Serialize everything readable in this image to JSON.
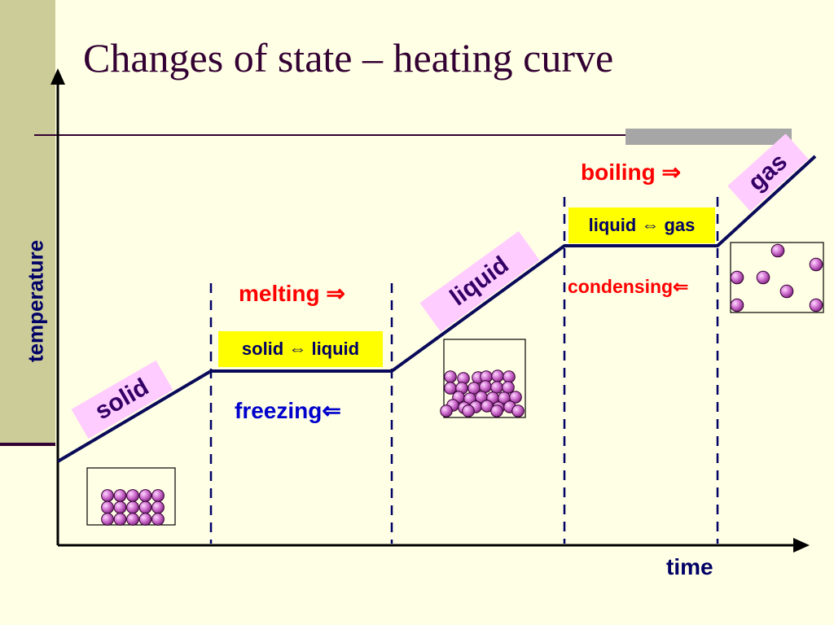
{
  "title": "Changes of state – heating curve",
  "axes": {
    "x_label": "time",
    "y_label": "temperature"
  },
  "phase_tags": {
    "solid": "solid",
    "liquid": "liquid",
    "gas": "gas"
  },
  "transitions": {
    "melting": "melting ⇒",
    "freezing": "freezing⇐",
    "boiling": "boiling ⇒",
    "condensing": "condensing⇐"
  },
  "equilibria": {
    "solid_liquid": "solid ⇔ liquid",
    "liquid_gas": "liquid ⇔ gas"
  },
  "colors": {
    "curve": "#0a0a5a",
    "particle_fill": "#cc66cc",
    "transition_text": "#ff0000",
    "reverse_text": "#0000cc",
    "equilibrium_box": "#ffff00",
    "phase_tag": "#ffccff"
  }
}
